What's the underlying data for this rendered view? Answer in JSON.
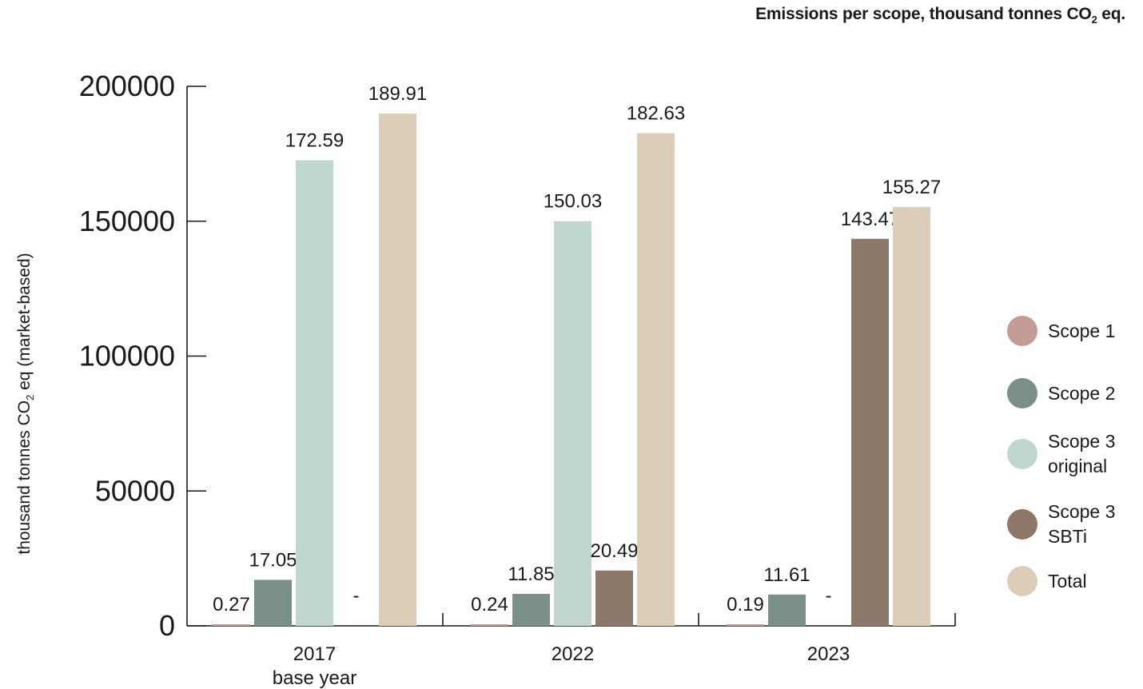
{
  "title": {
    "text": "Emissions per scope, thousand tonnes CO",
    "sub": "2",
    "suffix": " eq."
  },
  "colors": {
    "Scope 1": "#c29c95",
    "Scope 2": "#7a8f86",
    "Scope 3 original": "#c0d7d0",
    "Scope 3 SBTi": "#8c7769",
    "Total": "#dccdb8",
    "axis": "#1a1a1a"
  },
  "chart_data": {
    "type": "bar",
    "title": "Emissions per scope, thousand tonnes CO2 eq.",
    "ylabel": "thousand tonnes CO2 eq (market-based)",
    "ylabel_parts": {
      "pre": "thousand tonnes CO",
      "sub": "2",
      "post": " eq (market-based)"
    },
    "ylim": [
      0,
      200000
    ],
    "yticks": [
      0,
      50000,
      100000,
      150000,
      200000
    ],
    "ytick_labels": [
      "0",
      "50000",
      "100000",
      "150000",
      "200000"
    ],
    "grid": false,
    "legend_position": "right",
    "categories": [
      "2017",
      "2022",
      "2023"
    ],
    "category_labels": [
      [
        "2017",
        "base year"
      ],
      [
        "2022"
      ],
      [
        "2023"
      ]
    ],
    "series": [
      {
        "name": "Scope 1",
        "values": [
          270,
          240,
          190
        ],
        "labels": [
          "0.27",
          "0.24",
          "0.19"
        ]
      },
      {
        "name": "Scope 2",
        "values": [
          17050,
          11850,
          11610
        ],
        "labels": [
          "17.05",
          "11.85",
          "11.61"
        ]
      },
      {
        "name": "Scope 3 original",
        "values": [
          172590,
          150030,
          null
        ],
        "labels": [
          "172.59",
          "150.03",
          "-"
        ]
      },
      {
        "name": "Scope 3 SBTi",
        "values": [
          null,
          20490,
          143470
        ],
        "labels": [
          "-",
          "20.49",
          "143.47"
        ]
      },
      {
        "name": "Total",
        "values": [
          189910,
          182630,
          155270
        ],
        "labels": [
          "189.91",
          "182.63",
          "155.27"
        ]
      }
    ]
  },
  "legend": [
    {
      "label": "Scope 1",
      "color": "#c29c95"
    },
    {
      "label": "Scope 2",
      "color": "#7a8f86"
    },
    {
      "label": "Scope 3\noriginal",
      "color": "#c0d7d0"
    },
    {
      "label": "Scope 3\nSBTi",
      "color": "#8c7769"
    },
    {
      "label": "Total",
      "color": "#dccdb8"
    }
  ]
}
